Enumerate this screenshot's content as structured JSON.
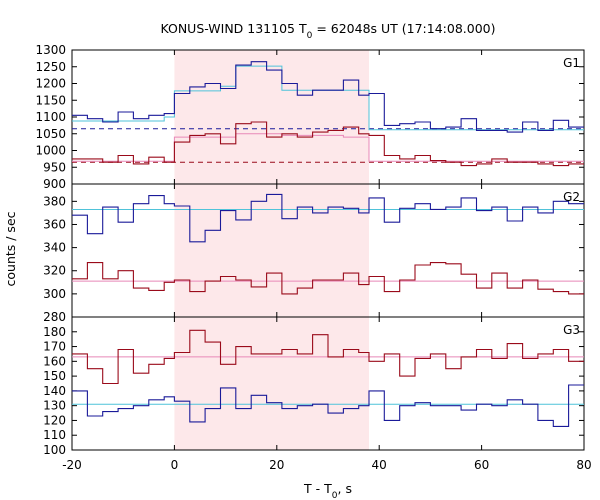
{
  "chart_data": {
    "type": "line",
    "title": "KONUS-WIND 131105 T₀ = 62048s UT (17:14:08.000)",
    "title_parts": {
      "prefix": "KONUS-WIND 131105 T",
      "subscript": "0",
      "suffix": " = 62048s UT (17:14:08.000)"
    },
    "xlabel": "T - T₀, s",
    "xlabel_parts": {
      "prefix": "T - T",
      "subscript": "0",
      "suffix": ", s"
    },
    "ylabel": "counts / sec",
    "xlim": [
      -20,
      80
    ],
    "x_ticks": [
      "-20",
      "0",
      "20",
      "40",
      "60",
      "80"
    ],
    "highlight_interval": {
      "start": 0,
      "end": 38,
      "color": "#fde8ea"
    },
    "colors": {
      "blue": "#1a1a99",
      "red": "#9a0a1a",
      "fit_cyan": "#4fc3d9",
      "fit_pink": "#e888b8",
      "bg_blue": "#1a1a99",
      "bg_red": "#9a0a1a"
    },
    "panels": [
      {
        "label": "G1",
        "ylim": [
          900,
          1300
        ],
        "y_ticks": [
          "900",
          "950",
          "1000",
          "1050",
          "1100",
          "1150",
          "1200",
          "1250",
          "1300"
        ],
        "bin_edges": [
          -20,
          -17,
          -14,
          -11,
          -8,
          -5,
          -2,
          0,
          3,
          6,
          9,
          12,
          15,
          18,
          21,
          24,
          27,
          30,
          33,
          36,
          38,
          41,
          44,
          47,
          50,
          53,
          56,
          59,
          62,
          65,
          68,
          71,
          74,
          77,
          80
        ],
        "series": [
          {
            "color_key": "blue",
            "values": [
              1105,
              1095,
              1085,
              1115,
              1095,
              1105,
              1110,
              1170,
              1190,
              1200,
              1185,
              1255,
              1265,
              1240,
              1200,
              1165,
              1180,
              1180,
              1210,
              1165,
              1170,
              1075,
              1080,
              1085,
              1065,
              1070,
              1095,
              1060,
              1060,
              1055,
              1085,
              1060,
              1090,
              1070
            ]
          },
          {
            "color_key": "red",
            "values": [
              975,
              975,
              965,
              985,
              960,
              980,
              965,
              1025,
              1045,
              1050,
              1020,
              1080,
              1085,
              1040,
              1050,
              1040,
              1055,
              1060,
              1070,
              1050,
              1045,
              985,
              975,
              985,
              970,
              965,
              955,
              960,
              975,
              965,
              965,
              960,
              955,
              960
            ]
          }
        ],
        "fits": [
          {
            "color_key": "fit_cyan",
            "steps": [
              [
                -20,
                -2,
                1088
              ],
              [
                -2,
                0,
                1100
              ],
              [
                0,
                9,
                1178
              ],
              [
                9,
                12,
                1192
              ],
              [
                12,
                21,
                1252
              ],
              [
                21,
                38,
                1180
              ],
              [
                38,
                80,
                1062
              ]
            ]
          },
          {
            "color_key": "fit_pink",
            "steps": [
              [
                -20,
                0,
                968
              ],
              [
                0,
                12,
                1040
              ],
              [
                12,
                21,
                1050
              ],
              [
                21,
                33,
                1045
              ],
              [
                33,
                38,
                1040
              ],
              [
                38,
                80,
                968
              ]
            ]
          }
        ],
        "backgrounds": [
          {
            "color_key": "bg_blue",
            "value": 1065
          },
          {
            "color_key": "bg_red",
            "value": 965
          }
        ]
      },
      {
        "label": "G2",
        "ylim": [
          280,
          395
        ],
        "y_ticks": [
          "280",
          "300",
          "320",
          "340",
          "360",
          "380"
        ],
        "bin_edges": [
          -20,
          -17,
          -14,
          -11,
          -8,
          -5,
          -2,
          0,
          3,
          6,
          9,
          12,
          15,
          18,
          21,
          24,
          27,
          30,
          33,
          36,
          38,
          41,
          44,
          47,
          50,
          53,
          56,
          59,
          62,
          65,
          68,
          71,
          74,
          77,
          80
        ],
        "series": [
          {
            "color_key": "blue",
            "values": [
              368,
              352,
              375,
              362,
              378,
              385,
              378,
              376,
              345,
              355,
              372,
              364,
              380,
              386,
              365,
              375,
              370,
              375,
              374,
              370,
              383,
              362,
              374,
              378,
              373,
              375,
              383,
              372,
              375,
              363,
              375,
              370,
              380,
              378
            ]
          },
          {
            "color_key": "red",
            "values": [
              313,
              327,
              313,
              320,
              305,
              303,
              310,
              312,
              302,
              311,
              315,
              312,
              306,
              318,
              300,
              305,
              312,
              312,
              318,
              308,
              315,
              302,
              312,
              325,
              327,
              326,
              317,
              305,
              318,
              305,
              312,
              304,
              302,
              300
            ]
          }
        ],
        "fits": [
          {
            "color_key": "fit_cyan",
            "value": 373
          },
          {
            "color_key": "fit_pink",
            "value": 311
          }
        ]
      },
      {
        "label": "G3",
        "ylim": [
          100,
          190
        ],
        "y_ticks": [
          "100",
          "110",
          "120",
          "130",
          "140",
          "150",
          "160",
          "170",
          "180"
        ],
        "bin_edges": [
          -20,
          -17,
          -14,
          -11,
          -8,
          -5,
          -2,
          0,
          3,
          6,
          9,
          12,
          15,
          18,
          21,
          24,
          27,
          30,
          33,
          36,
          38,
          41,
          44,
          47,
          50,
          53,
          56,
          59,
          62,
          65,
          68,
          71,
          74,
          77,
          80
        ],
        "series": [
          {
            "color_key": "red",
            "values": [
              165,
              155,
              145,
              168,
              152,
              158,
              162,
              166,
              181,
              173,
              158,
              170,
              165,
              165,
              168,
              165,
              178,
              163,
              168,
              166,
              160,
              165,
              150,
              162,
              165,
              155,
              163,
              168,
              162,
              172,
              162,
              165,
              168,
              160
            ]
          },
          {
            "color_key": "blue",
            "values": [
              140,
              123,
              126,
              128,
              130,
              134,
              136,
              133,
              119,
              128,
              142,
              128,
              137,
              132,
              128,
              130,
              131,
              125,
              128,
              130,
              140,
              120,
              130,
              132,
              130,
              130,
              127,
              131,
              130,
              134,
              131,
              120,
              116,
              144
            ]
          }
        ],
        "fits": [
          {
            "color_key": "fit_pink",
            "value": 163
          },
          {
            "color_key": "fit_cyan",
            "value": 131
          }
        ]
      }
    ]
  }
}
